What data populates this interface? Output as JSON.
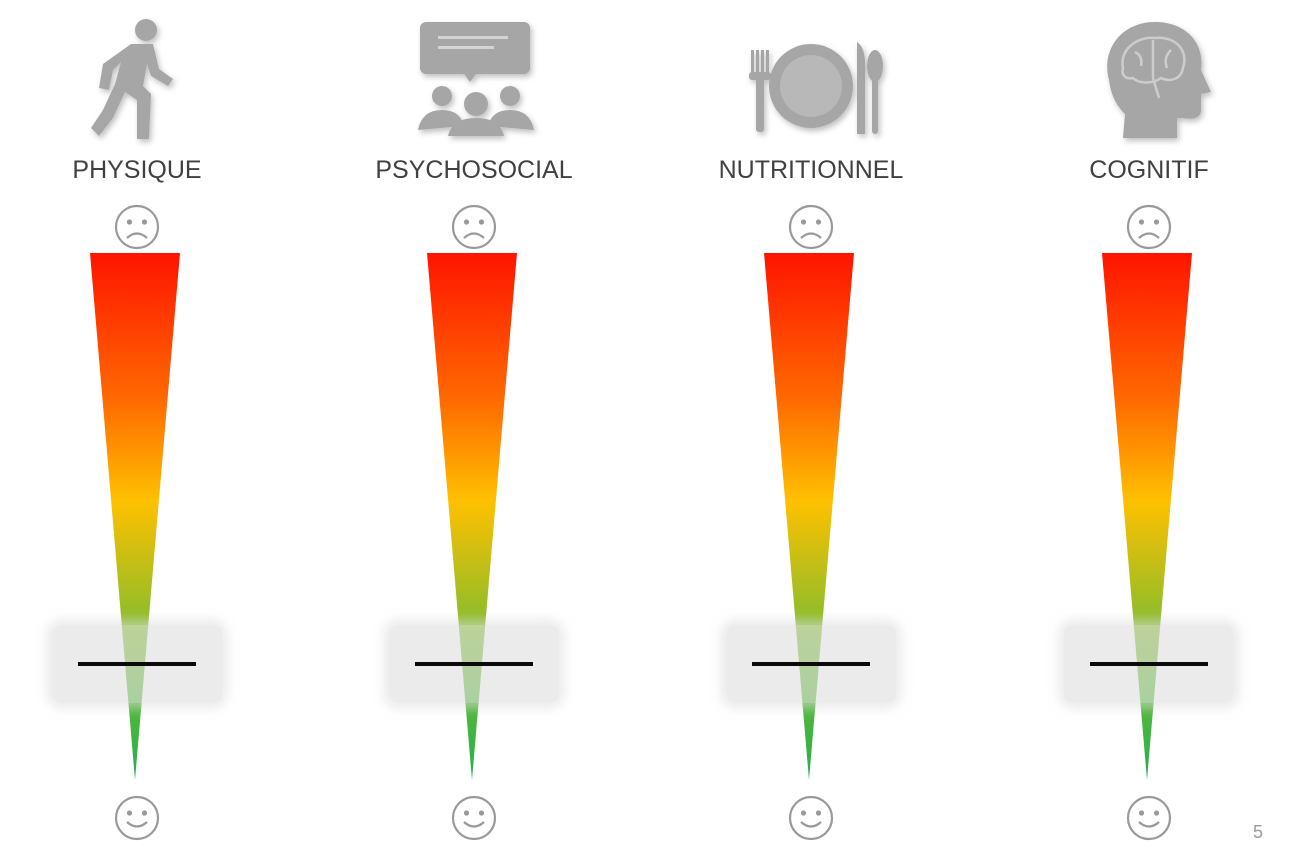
{
  "colors": {
    "icon": "#a6a6a6",
    "label": "#404040",
    "marker": "#0a0a0a",
    "gauge_top": "#ff1400",
    "gauge_mid": "#ffc000",
    "gauge_low": "#8cbd2a",
    "gauge_bottom": "#22b14c"
  },
  "dimensions": [
    {
      "label": "PHYSIQUE",
      "icon": "walking-person-icon",
      "level": 0.22
    },
    {
      "label": "PSYCHOSOCIAL",
      "icon": "group-speech-icon",
      "level": 0.22
    },
    {
      "label": "NUTRITIONNEL",
      "icon": "plate-cutlery-icon",
      "level": 0.22
    },
    {
      "label": "COGNITIF",
      "icon": "brain-head-icon",
      "level": 0.22
    }
  ],
  "scale": {
    "top": "sad-face-icon",
    "bottom": "happy-face-icon"
  },
  "page_number": "5"
}
